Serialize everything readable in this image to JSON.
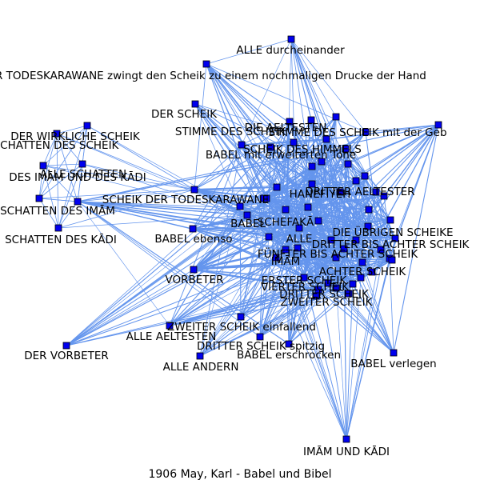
{
  "caption": "1906  May,  Karl  -  Babel  und  Bibel",
  "colors": {
    "edge": "#6495ed",
    "node_fill": "#0000ee",
    "node_stroke": "#000000",
    "background": "#ffffff"
  },
  "node_labels": [
    "ALLE durcheinander",
    "R TODESKARAWANE zwingt den Scheik zu einem nochmaligen Drucke der Hand",
    "DER SCHEIK",
    "DER WIRKLICHE SCHEIK",
    "SCHATTEN DES SCHEIK",
    "DES IMĀM UND DES KĀDI",
    "ALLE SCHATTEN",
    "SCHATTEN DES IMĀM",
    "SCHATTEN DES KĀDI",
    "SCHEIK DER TODESKARAWANE",
    "BABEL ebenso",
    "VORBETER",
    "DER VORBETER",
    "ALLE AELTESTEN",
    "ALLE ANDERN",
    "ZWEITER SCHEIK einfallend",
    "DRITTER SCHEIK spitzig",
    "BABEL erschrocken",
    "BABEL verlegen",
    "IMĀM UND KĀDI",
    "STIMME DES SCHEIK",
    "BABEL",
    "SCHEFAKĀ",
    "ALLE",
    "IMĀM",
    "DIE ÜBRIGEN SCHEIKE",
    "ERSTER SCHEIK",
    "DRITTER SCHEIK",
    "VIERTER SCHEIK",
    "ZWEITER SCHEIK",
    "ACHTER SCHEIK",
    "FÜNFTER BIS ACHTER SCHEIK",
    "DRITTER BIS ACHTER SCHEIK",
    "DRITTER AELTESTER",
    "HANEFIYEH",
    "BABEL mit erweiterten Tone",
    "STIMME DES SCHEIK mit der Geb",
    "DIE AELTESTEN",
    "SCHEIK DES HIMMELS"
  ]
}
